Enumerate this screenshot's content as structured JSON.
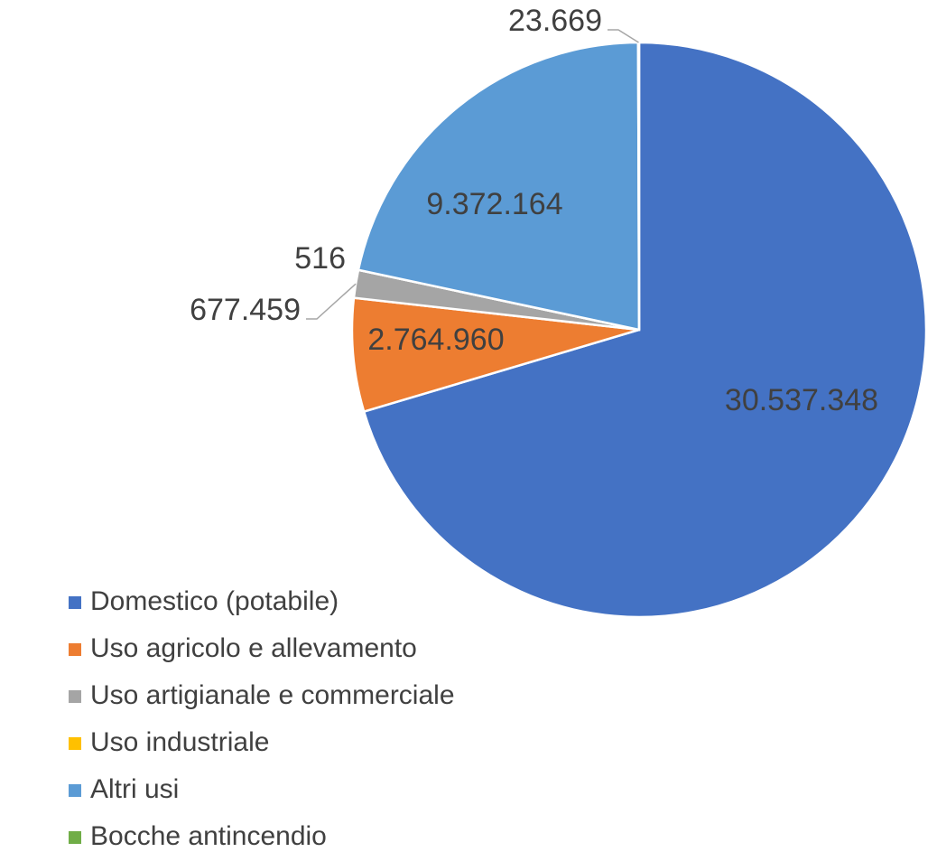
{
  "chart_data": {
    "type": "pie",
    "categories": [
      "Domestico (potabile)",
      "Uso agricolo e allevamento",
      "Uso artigianale e commerciale",
      "Uso industriale",
      "Altri usi",
      "Bocche antincendio"
    ],
    "values": [
      30537348,
      2764960,
      677459,
      516,
      9372164,
      23669
    ],
    "value_labels": [
      "30.537.348",
      "2.764.960",
      "677.459",
      "516",
      "9.372.164",
      "23.669"
    ],
    "colors": [
      "#4472c4",
      "#ed7d31",
      "#a5a5a5",
      "#ffc000",
      "#5b9bd5",
      "#70ad47"
    ],
    "legend": "bottom-left"
  }
}
